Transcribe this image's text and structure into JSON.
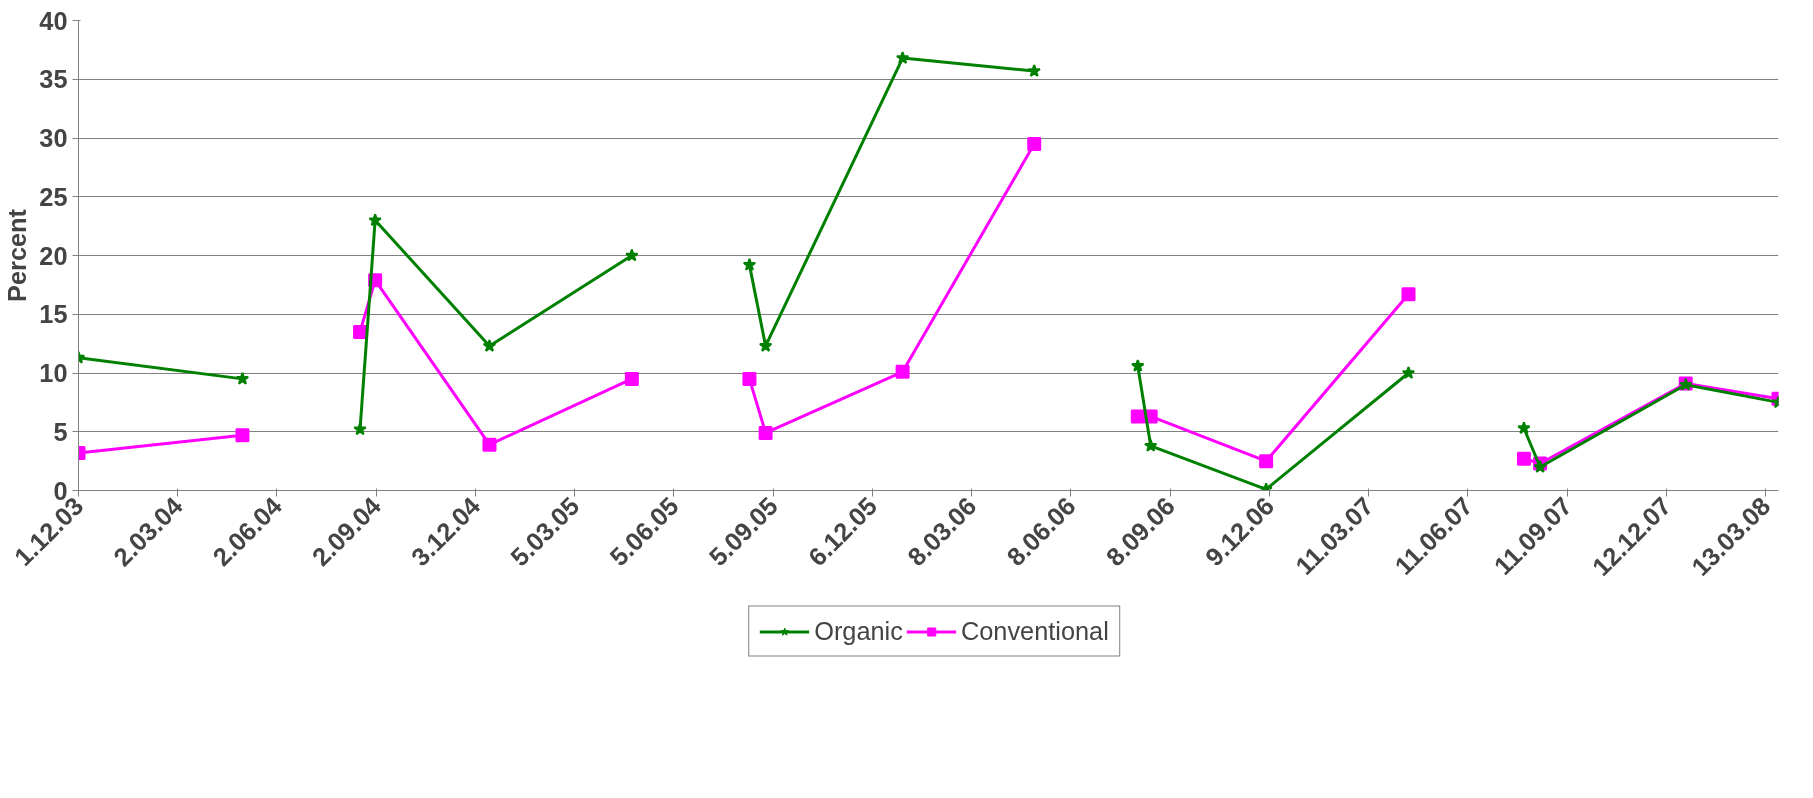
{
  "chart_data": {
    "type": "line",
    "ylabel": "Percent",
    "x": [
      "2003-12-01",
      "2004-05-01",
      "2004-07-01",
      "2004-08-18",
      "2004-09-01",
      "2004-12-16",
      "2005-04-27",
      "2005-06-20",
      "2005-08-14",
      "2005-08-29",
      "2006-01-03",
      "2006-05-05",
      "2006-07-01",
      "2006-08-09",
      "2006-08-21",
      "2006-12-06",
      "2007-04-17",
      "2007-06-20",
      "2007-08-02",
      "2007-08-17",
      "2007-12-30",
      "2008-03-25"
    ],
    "series": [
      {
        "name": "Organic",
        "color": "#008000",
        "marker": "star",
        "values": [
          11.3,
          9.5,
          null,
          5.2,
          23,
          12.3,
          20,
          null,
          19.2,
          12.3,
          36.8,
          35.7,
          null,
          10.6,
          3.8,
          0.1,
          10,
          null,
          5.3,
          2.0,
          9,
          7.5
        ]
      },
      {
        "name": "Conventional",
        "color": "#ff00ff",
        "marker": "square",
        "values": [
          3.2,
          4.7,
          null,
          13.5,
          17.9,
          3.9,
          9.5,
          null,
          9.5,
          4.9,
          10.1,
          29.5,
          null,
          6.3,
          6.3,
          2.5,
          16.7,
          null,
          2.7,
          2.3,
          9.1,
          7.8
        ]
      }
    ],
    "xlim": [
      "2003-12-01",
      "2008-03-25"
    ],
    "xticks": [
      {
        "value": "2003-12-01",
        "label": "1.12.03"
      },
      {
        "value": "2004-03-02",
        "label": "2.03.04"
      },
      {
        "value": "2004-06-02",
        "label": "2.06.04"
      },
      {
        "value": "2004-09-02",
        "label": "2.09.04"
      },
      {
        "value": "2004-12-03",
        "label": "3.12.04"
      },
      {
        "value": "2005-03-05",
        "label": "5.03.05"
      },
      {
        "value": "2005-06-05",
        "label": "5.06.05"
      },
      {
        "value": "2005-09-05",
        "label": "5.09.05"
      },
      {
        "value": "2005-12-06",
        "label": "6.12.05"
      },
      {
        "value": "2006-03-08",
        "label": "8.03.06"
      },
      {
        "value": "2006-06-08",
        "label": "8.06.06"
      },
      {
        "value": "2006-09-08",
        "label": "8.09.06"
      },
      {
        "value": "2006-12-09",
        "label": "9.12.06"
      },
      {
        "value": "2007-03-11",
        "label": "11.03.07"
      },
      {
        "value": "2007-06-11",
        "label": "11.06.07"
      },
      {
        "value": "2007-09-11",
        "label": "11.09.07"
      },
      {
        "value": "2007-12-12",
        "label": "12.12.07"
      },
      {
        "value": "2008-03-13",
        "label": "13.03.08"
      }
    ],
    "ylim": [
      0,
      40
    ],
    "yticks": [
      0,
      5,
      10,
      15,
      20,
      25,
      30,
      35,
      40
    ],
    "grid": "y",
    "legend": "bottom",
    "line_style": "solid"
  }
}
